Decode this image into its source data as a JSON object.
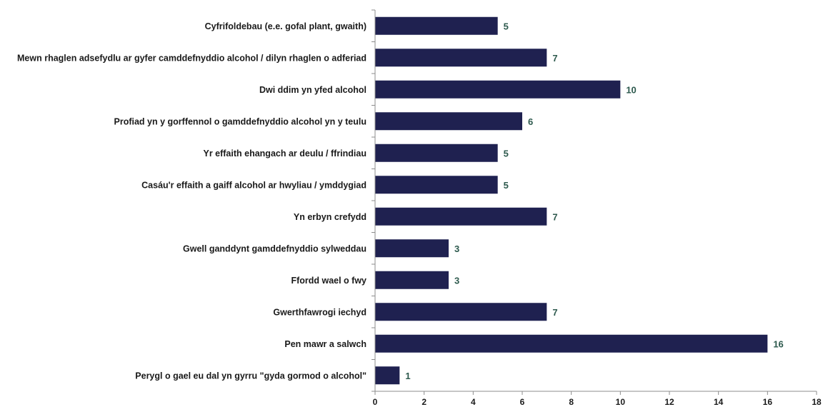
{
  "chart_data": {
    "type": "bar",
    "orientation": "horizontal",
    "categories": [
      "Cyfrifoldebau (e.e. gofal plant, gwaith)",
      "Mewn rhaglen adsefydlu ar gyfer camddefnyddio alcohol / dilyn rhaglen o adferiad",
      "Dwi ddim yn yfed alcohol",
      "Profiad yn y gorffennol o gamddefnyddio alcohol yn y teulu",
      "Yr effaith ehangach ar deulu / ffrindiau",
      "Casáu'r effaith a gaiff alcohol ar hwyliau / ymddygiad",
      "Yn erbyn crefydd",
      "Gwell ganddynt gamddefnyddio sylweddau",
      "Ffordd wael o fwy",
      "Gwerthfawrogi iechyd",
      "Pen mawr a salwch",
      "Perygl o gael eu dal yn gyrru \"gyda gormod o alcohol\""
    ],
    "values": [
      5,
      7,
      10,
      6,
      5,
      5,
      7,
      3,
      3,
      7,
      16,
      1
    ],
    "xlim": [
      0,
      18
    ],
    "xticks": [
      0,
      2,
      4,
      6,
      8,
      10,
      12,
      14,
      16,
      18
    ],
    "grid": false,
    "legend": "none",
    "colors": {
      "bar": "#1f2150",
      "value_label": "#2e5a4e"
    }
  }
}
